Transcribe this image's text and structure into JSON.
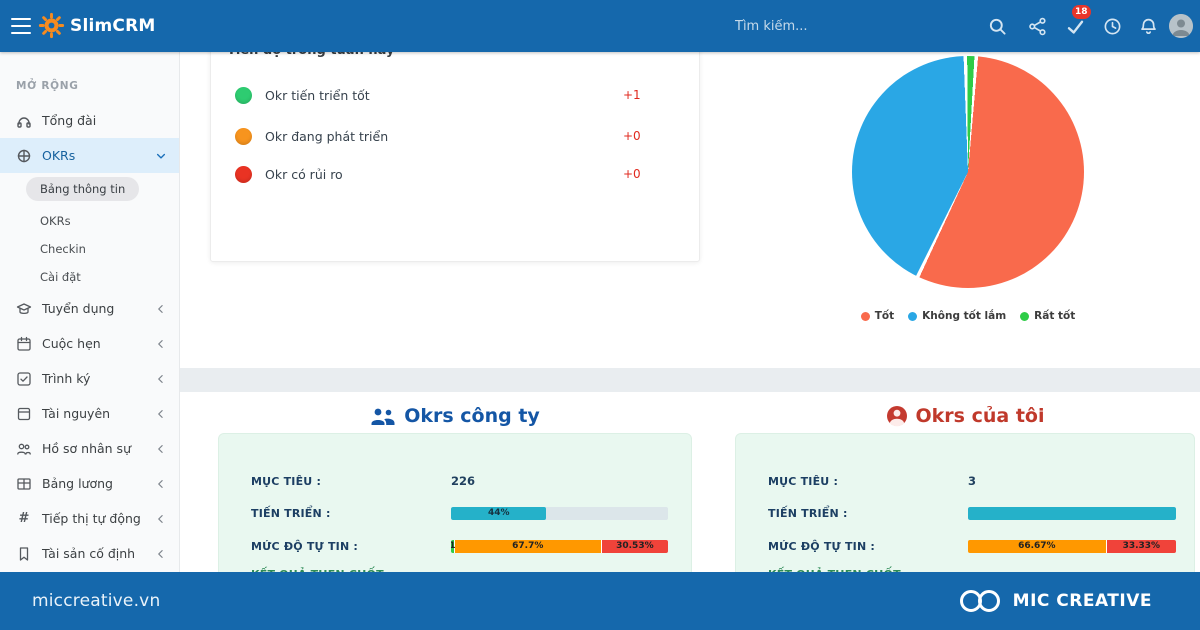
{
  "topbar": {
    "brand_slim": "Slim",
    "brand_crm": "CRM",
    "search_placeholder": "Tìm kiếm...",
    "notification_count": "18",
    "icons": [
      "search-icon",
      "share-icon",
      "check-icon",
      "clock-icon",
      "bell-icon",
      "avatar"
    ]
  },
  "sidebar": {
    "section_label": "MỞ RỘNG",
    "items": [
      {
        "label": "Tổng đài",
        "icon": "headset-icon"
      },
      {
        "label": "OKRs",
        "icon": "target-icon",
        "expanded": true
      },
      {
        "label": "Tuyển dụng",
        "icon": "graduation-cap-icon"
      },
      {
        "label": "Cuộc hẹn",
        "icon": "calendar-icon"
      },
      {
        "label": "Trình ký",
        "icon": "check-square-icon"
      },
      {
        "label": "Tài nguyên",
        "icon": "box-icon"
      },
      {
        "label": "Hồ sơ nhân sự",
        "icon": "people-icon"
      },
      {
        "label": "Bảng lương",
        "icon": "table-icon"
      },
      {
        "label": "Tiếp thị tự động",
        "icon": "hash-icon"
      },
      {
        "label": "Tài sản cố định",
        "icon": "bookmark-icon"
      }
    ],
    "okr_children": [
      {
        "label": "Bảng thông tin",
        "active": true
      },
      {
        "label": "OKRs"
      },
      {
        "label": "Checkin"
      },
      {
        "label": "Cài đặt"
      }
    ]
  },
  "weekly": {
    "title": "Tiến độ trong tuần này",
    "rows": [
      {
        "label": "Okr tiến triển tốt",
        "delta": "+1",
        "color": "#2ecc71"
      },
      {
        "label": "Okr đang phát triển",
        "delta": "+0",
        "color": "#f7941e"
      },
      {
        "label": "Okr có rủi ro",
        "delta": "+0",
        "color": "#e93323"
      }
    ]
  },
  "chart_data": {
    "type": "pie",
    "title": "",
    "labels": [
      "Tốt",
      "Không tốt lắm",
      "Rất tốt"
    ],
    "values": [
      56,
      42.5,
      1.5
    ],
    "colors": [
      "#f96a4c",
      "#2aa7e5",
      "#2ecc47"
    ],
    "start_angle_deg": 5,
    "legend_position": "bottom"
  },
  "company_okrs": {
    "title": "Okrs công ty",
    "rows": {
      "target_label": "MỤC TIÊU :",
      "target_value": "226",
      "progress_label": "TIẾN TRIỂN :",
      "progress_pct": 44,
      "progress_text": "44%",
      "confidence_label": "MỨC ĐỘ TỰ TIN :",
      "confidence_segments": [
        {
          "text": "1",
          "pct": 1.77,
          "color": "#2ecc47"
        },
        {
          "text": "67.7%",
          "pct": 67.7,
          "color": "#ff9800"
        },
        {
          "text": "30.53%",
          "pct": 30.53,
          "color": "#f0433a"
        }
      ],
      "keyresult_label": "KẾT QUẢ THEN CHỐT :"
    }
  },
  "my_okrs": {
    "title": "Okrs của tôi",
    "rows": {
      "target_label": "MỤC TIÊU :",
      "target_value": "3",
      "progress_label": "TIẾN TRIỂN :",
      "progress_pct": 100,
      "progress_text": "",
      "confidence_label": "MỨC ĐỘ TỰ TIN :",
      "confidence_segments": [
        {
          "text": "66.67%",
          "pct": 66.67,
          "color": "#ff9800"
        },
        {
          "text": "33.33%",
          "pct": 33.33,
          "color": "#f0433a"
        }
      ],
      "keyresult_label": "KẾT QUẢ THEN CHỐT :"
    }
  },
  "footer": {
    "site": "miccreative.vn",
    "brand": "MIC CREATIVE"
  }
}
